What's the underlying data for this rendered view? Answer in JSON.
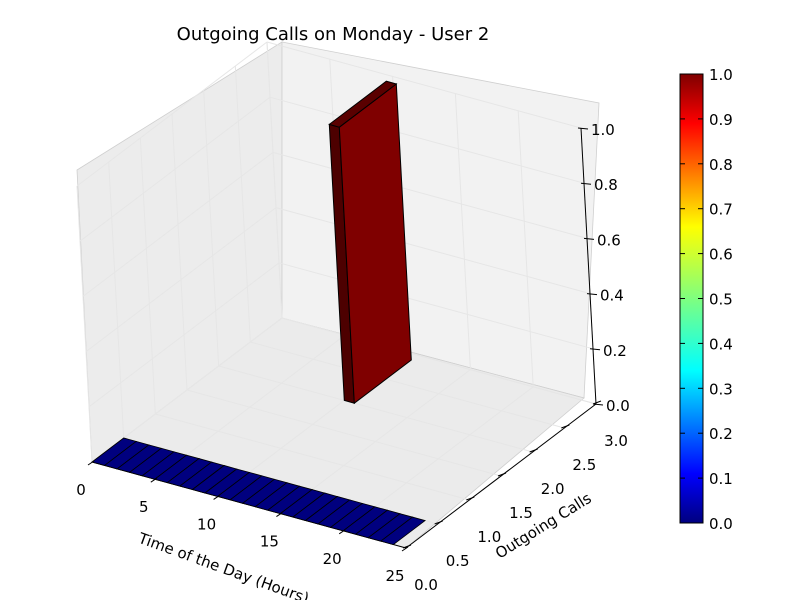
{
  "chart_data": {
    "type": "bar3d",
    "title": "Outgoing Calls on Monday - User 2",
    "xlabel": "Time of the Day (Hours)",
    "ylabel": "Outgoing Calls",
    "zlabel": "",
    "xlim": [
      0,
      25
    ],
    "ylim": [
      0,
      3.0
    ],
    "zlim": [
      0,
      1.0
    ],
    "x_ticks": [
      "0",
      "5",
      "10",
      "15",
      "20",
      "25"
    ],
    "y_ticks": [
      "0.0",
      "0.5",
      "1.0",
      "1.5",
      "2.0",
      "2.5",
      "3.0"
    ],
    "z_ticks": [
      "0.0",
      "0.2",
      "0.4",
      "0.6",
      "0.8",
      "1.0"
    ],
    "x_hours": [
      0,
      1,
      2,
      3,
      4,
      5,
      6,
      7,
      8,
      9,
      10,
      11,
      12,
      13,
      14,
      15,
      16,
      17,
      18,
      19,
      20,
      21,
      22,
      23
    ],
    "y_outgoing_calls": [
      0,
      0,
      0,
      0,
      0,
      0,
      0,
      0,
      0,
      0,
      0,
      0,
      0,
      0,
      0,
      0,
      0,
      0,
      0,
      0,
      0,
      0,
      0,
      0
    ],
    "z_values": [
      0,
      0,
      0,
      0,
      0,
      0,
      0,
      0,
      0,
      0,
      0,
      0,
      0,
      0,
      0,
      0,
      0,
      0,
      0,
      0,
      0,
      0,
      0,
      0
    ],
    "highlight_bar": {
      "x": 10,
      "y": 2,
      "z": 1.0
    },
    "colorbar": {
      "colormap": "jet",
      "range": [
        0.0,
        1.0
      ],
      "ticks": [
        "0.0",
        "0.1",
        "0.2",
        "0.3",
        "0.4",
        "0.5",
        "0.6",
        "0.7",
        "0.8",
        "0.9",
        "1.0"
      ]
    },
    "colors": {
      "low": "#00007f",
      "high": "#7f0000",
      "high_side": "#4d0000",
      "pane": "#f2f2f2",
      "grid": "#e6e6e6"
    }
  }
}
